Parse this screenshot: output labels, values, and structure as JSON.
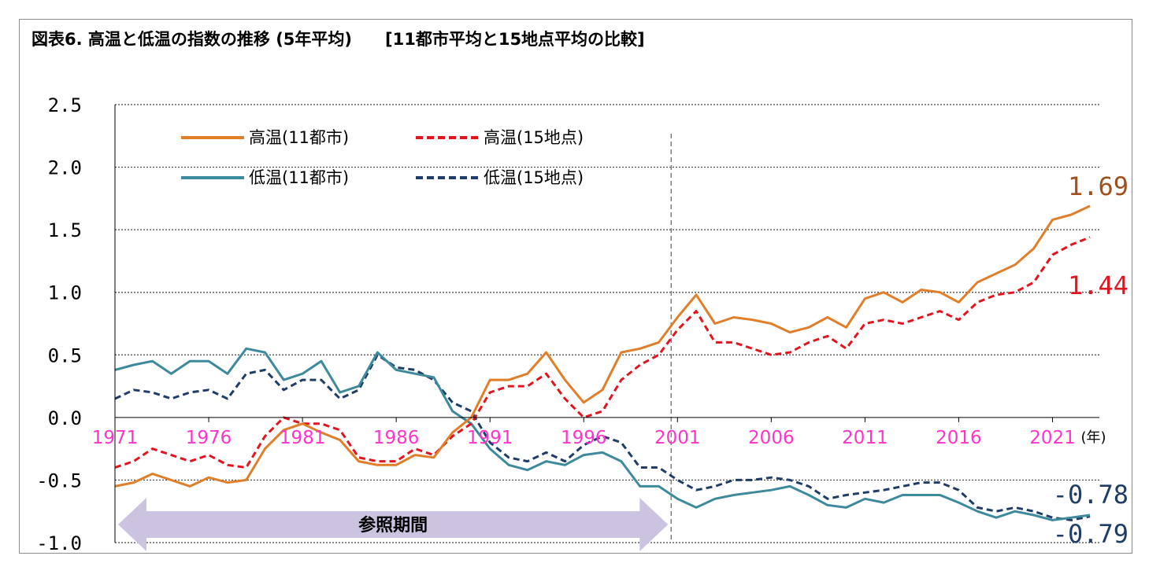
{
  "title": "図表6. 高温と低温の指数の推移 (5年平均)　　[11都市平均と15地点平均の比較]",
  "reference_period_label": "参照期間",
  "x_unit": "(年)",
  "end_labels": {
    "high_11": "1.69",
    "high_15": "1.44",
    "low_11": "-0.78",
    "low_15": "-0.79"
  },
  "colors": {
    "high_11": "#E07E2A",
    "high_15": "#E3141E",
    "low_11": "#3D8A9C",
    "low_15": "#1F3D66",
    "x_tick": "#FF33CC",
    "reference_arrow": "#CBC3E0"
  },
  "chart_data": {
    "type": "line",
    "title": "図表6. 高温と低温の指数の推移 (5年平均)　　[11都市平均と15地点平均の比較]",
    "xlabel": "(年)",
    "ylabel": "",
    "xlim": [
      1971,
      2023.5
    ],
    "ylim": [
      -1.0,
      2.5
    ],
    "y_ticks": [
      "2.5",
      "2.0",
      "1.5",
      "1.0",
      "0.5",
      "0.0",
      "-0.5",
      "-1.0"
    ],
    "y_tick_values": [
      2.5,
      2.0,
      1.5,
      1.0,
      0.5,
      0.0,
      -0.5,
      -1.0
    ],
    "x_ticks": [
      "1971",
      "1976",
      "1981",
      "1986",
      "1991",
      "1996",
      "2001",
      "2006",
      "2011",
      "2016",
      "2021"
    ],
    "x_tick_values": [
      1971,
      1976,
      1981,
      1986,
      1991,
      1996,
      2001,
      2006,
      2011,
      2016,
      2021
    ],
    "grid": "horizontal dotted",
    "reference_period": [
      1971,
      2001
    ],
    "legend_position": "top-left",
    "series": [
      {
        "key": "high_11",
        "name": "高温(11都市)",
        "style": "solid",
        "x": [
          1971,
          1972,
          1973,
          1974,
          1975,
          1976,
          1977,
          1978,
          1979,
          1980,
          1981,
          1982,
          1983,
          1984,
          1985,
          1986,
          1987,
          1988,
          1989,
          1990,
          1991,
          1992,
          1993,
          1994,
          1995,
          1996,
          1997,
          1998,
          1999,
          2000,
          2001,
          2002,
          2003,
          2004,
          2005,
          2006,
          2007,
          2008,
          2009,
          2010,
          2011,
          2012,
          2013,
          2014,
          2015,
          2016,
          2017,
          2018,
          2019,
          2020,
          2021,
          2022,
          2023
        ],
        "y": [
          -0.55,
          -0.52,
          -0.45,
          -0.5,
          -0.55,
          -0.48,
          -0.52,
          -0.5,
          -0.25,
          -0.1,
          -0.05,
          -0.12,
          -0.18,
          -0.35,
          -0.38,
          -0.38,
          -0.3,
          -0.32,
          -0.12,
          0.0,
          0.3,
          0.3,
          0.35,
          0.52,
          0.3,
          0.12,
          0.22,
          0.52,
          0.55,
          0.6,
          0.8,
          0.98,
          0.75,
          0.8,
          0.78,
          0.75,
          0.68,
          0.72,
          0.8,
          0.72,
          0.95,
          1.0,
          0.92,
          1.02,
          1.0,
          0.92,
          1.08,
          1.15,
          1.22,
          1.35,
          1.58,
          1.62,
          1.69
        ]
      },
      {
        "key": "high_15",
        "name": "高温(15地点)",
        "style": "dashed",
        "x": [
          1971,
          1972,
          1973,
          1974,
          1975,
          1976,
          1977,
          1978,
          1979,
          1980,
          1981,
          1982,
          1983,
          1984,
          1985,
          1986,
          1987,
          1988,
          1989,
          1990,
          1991,
          1992,
          1993,
          1994,
          1995,
          1996,
          1997,
          1998,
          1999,
          2000,
          2001,
          2002,
          2003,
          2004,
          2005,
          2006,
          2007,
          2008,
          2009,
          2010,
          2011,
          2012,
          2013,
          2014,
          2015,
          2016,
          2017,
          2018,
          2019,
          2020,
          2021,
          2022,
          2023
        ],
        "y": [
          -0.4,
          -0.35,
          -0.25,
          -0.3,
          -0.35,
          -0.3,
          -0.38,
          -0.4,
          -0.15,
          0.0,
          -0.05,
          -0.05,
          -0.1,
          -0.32,
          -0.35,
          -0.35,
          -0.25,
          -0.3,
          -0.15,
          -0.05,
          0.2,
          0.25,
          0.25,
          0.35,
          0.15,
          0.0,
          0.05,
          0.3,
          0.42,
          0.5,
          0.7,
          0.85,
          0.6,
          0.6,
          0.55,
          0.5,
          0.52,
          0.6,
          0.65,
          0.55,
          0.75,
          0.78,
          0.75,
          0.8,
          0.85,
          0.78,
          0.92,
          0.98,
          1.0,
          1.08,
          1.3,
          1.38,
          1.44
        ]
      },
      {
        "key": "low_11",
        "name": "低温(11都市)",
        "style": "solid",
        "x": [
          1971,
          1972,
          1973,
          1974,
          1975,
          1976,
          1977,
          1978,
          1979,
          1980,
          1981,
          1982,
          1983,
          1984,
          1985,
          1986,
          1987,
          1988,
          1989,
          1990,
          1991,
          1992,
          1993,
          1994,
          1995,
          1996,
          1997,
          1998,
          1999,
          2000,
          2001,
          2002,
          2003,
          2004,
          2005,
          2006,
          2007,
          2008,
          2009,
          2010,
          2011,
          2012,
          2013,
          2014,
          2015,
          2016,
          2017,
          2018,
          2019,
          2020,
          2021,
          2022,
          2023
        ],
        "y": [
          0.38,
          0.42,
          0.45,
          0.35,
          0.45,
          0.45,
          0.35,
          0.55,
          0.52,
          0.3,
          0.35,
          0.45,
          0.2,
          0.25,
          0.52,
          0.38,
          0.35,
          0.32,
          0.05,
          -0.05,
          -0.25,
          -0.38,
          -0.42,
          -0.35,
          -0.38,
          -0.3,
          -0.28,
          -0.35,
          -0.55,
          -0.55,
          -0.65,
          -0.72,
          -0.65,
          -0.62,
          -0.6,
          -0.58,
          -0.55,
          -0.62,
          -0.7,
          -0.72,
          -0.65,
          -0.68,
          -0.62,
          -0.62,
          -0.62,
          -0.68,
          -0.75,
          -0.8,
          -0.75,
          -0.78,
          -0.82,
          -0.8,
          -0.78
        ]
      },
      {
        "key": "low_15",
        "name": "低温(15地点)",
        "style": "dashed",
        "x": [
          1971,
          1972,
          1973,
          1974,
          1975,
          1976,
          1977,
          1978,
          1979,
          1980,
          1981,
          1982,
          1983,
          1984,
          1985,
          1986,
          1987,
          1988,
          1989,
          1990,
          1991,
          1992,
          1993,
          1994,
          1995,
          1996,
          1997,
          1998,
          1999,
          2000,
          2001,
          2002,
          2003,
          2004,
          2005,
          2006,
          2007,
          2008,
          2009,
          2010,
          2011,
          2012,
          2013,
          2014,
          2015,
          2016,
          2017,
          2018,
          2019,
          2020,
          2021,
          2022,
          2023
        ],
        "y": [
          0.15,
          0.22,
          0.2,
          0.15,
          0.2,
          0.22,
          0.15,
          0.35,
          0.38,
          0.22,
          0.3,
          0.3,
          0.15,
          0.22,
          0.5,
          0.4,
          0.38,
          0.3,
          0.12,
          0.05,
          -0.2,
          -0.32,
          -0.35,
          -0.28,
          -0.35,
          -0.22,
          -0.15,
          -0.2,
          -0.4,
          -0.4,
          -0.5,
          -0.58,
          -0.55,
          -0.5,
          -0.5,
          -0.48,
          -0.5,
          -0.55,
          -0.65,
          -0.62,
          -0.6,
          -0.58,
          -0.55,
          -0.52,
          -0.52,
          -0.58,
          -0.72,
          -0.75,
          -0.72,
          -0.75,
          -0.8,
          -0.82,
          -0.79
        ]
      }
    ]
  }
}
